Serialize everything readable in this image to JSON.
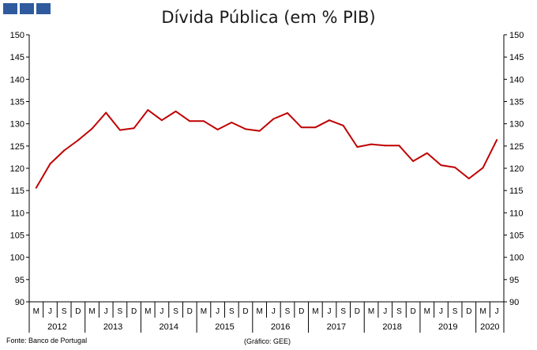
{
  "header": {
    "logo_icon": "institution-logo-blocks",
    "title": "Dívida Pública (em % PIB)"
  },
  "footer": {
    "source": "Fonte: Banco de Portugal",
    "credit": "(Gráfico: GEE)"
  },
  "chart_data": {
    "type": "line",
    "title": "Dívida Pública (em % PIB)",
    "xlabel": "",
    "ylabel": "",
    "ylim": [
      90,
      150
    ],
    "yticks": [
      90,
      95,
      100,
      105,
      110,
      115,
      120,
      125,
      130,
      135,
      140,
      145,
      150
    ],
    "y_axis_both_sides": true,
    "grid": false,
    "legend": "none",
    "line_color": "#c00000",
    "categories": [
      "M",
      "J",
      "S",
      "D",
      "M",
      "J",
      "S",
      "D",
      "M",
      "J",
      "S",
      "D",
      "M",
      "J",
      "S",
      "D",
      "M",
      "J",
      "S",
      "D",
      "M",
      "J",
      "S",
      "D",
      "M",
      "J",
      "S",
      "D",
      "M",
      "J",
      "S",
      "D",
      "M",
      "J"
    ],
    "years": [
      {
        "label": "2012",
        "quarters": 4
      },
      {
        "label": "2013",
        "quarters": 4
      },
      {
        "label": "2014",
        "quarters": 4
      },
      {
        "label": "2015",
        "quarters": 4
      },
      {
        "label": "2016",
        "quarters": 4
      },
      {
        "label": "2017",
        "quarters": 4
      },
      {
        "label": "2018",
        "quarters": 4
      },
      {
        "label": "2019",
        "quarters": 4
      },
      {
        "label": "2020",
        "quarters": 2
      }
    ],
    "series": [
      {
        "values": [
          115.6,
          121.0,
          124.0,
          126.3,
          128.9,
          132.5,
          128.6,
          129.0,
          133.1,
          130.8,
          132.8,
          130.6,
          130.6,
          128.7,
          130.3,
          128.8,
          128.4,
          131.1,
          132.4,
          129.2,
          129.2,
          130.8,
          129.6,
          124.8,
          125.4,
          125.1,
          125.1,
          121.6,
          123.4,
          120.7,
          120.2,
          117.7,
          120.1,
          126.4
        ]
      }
    ]
  }
}
